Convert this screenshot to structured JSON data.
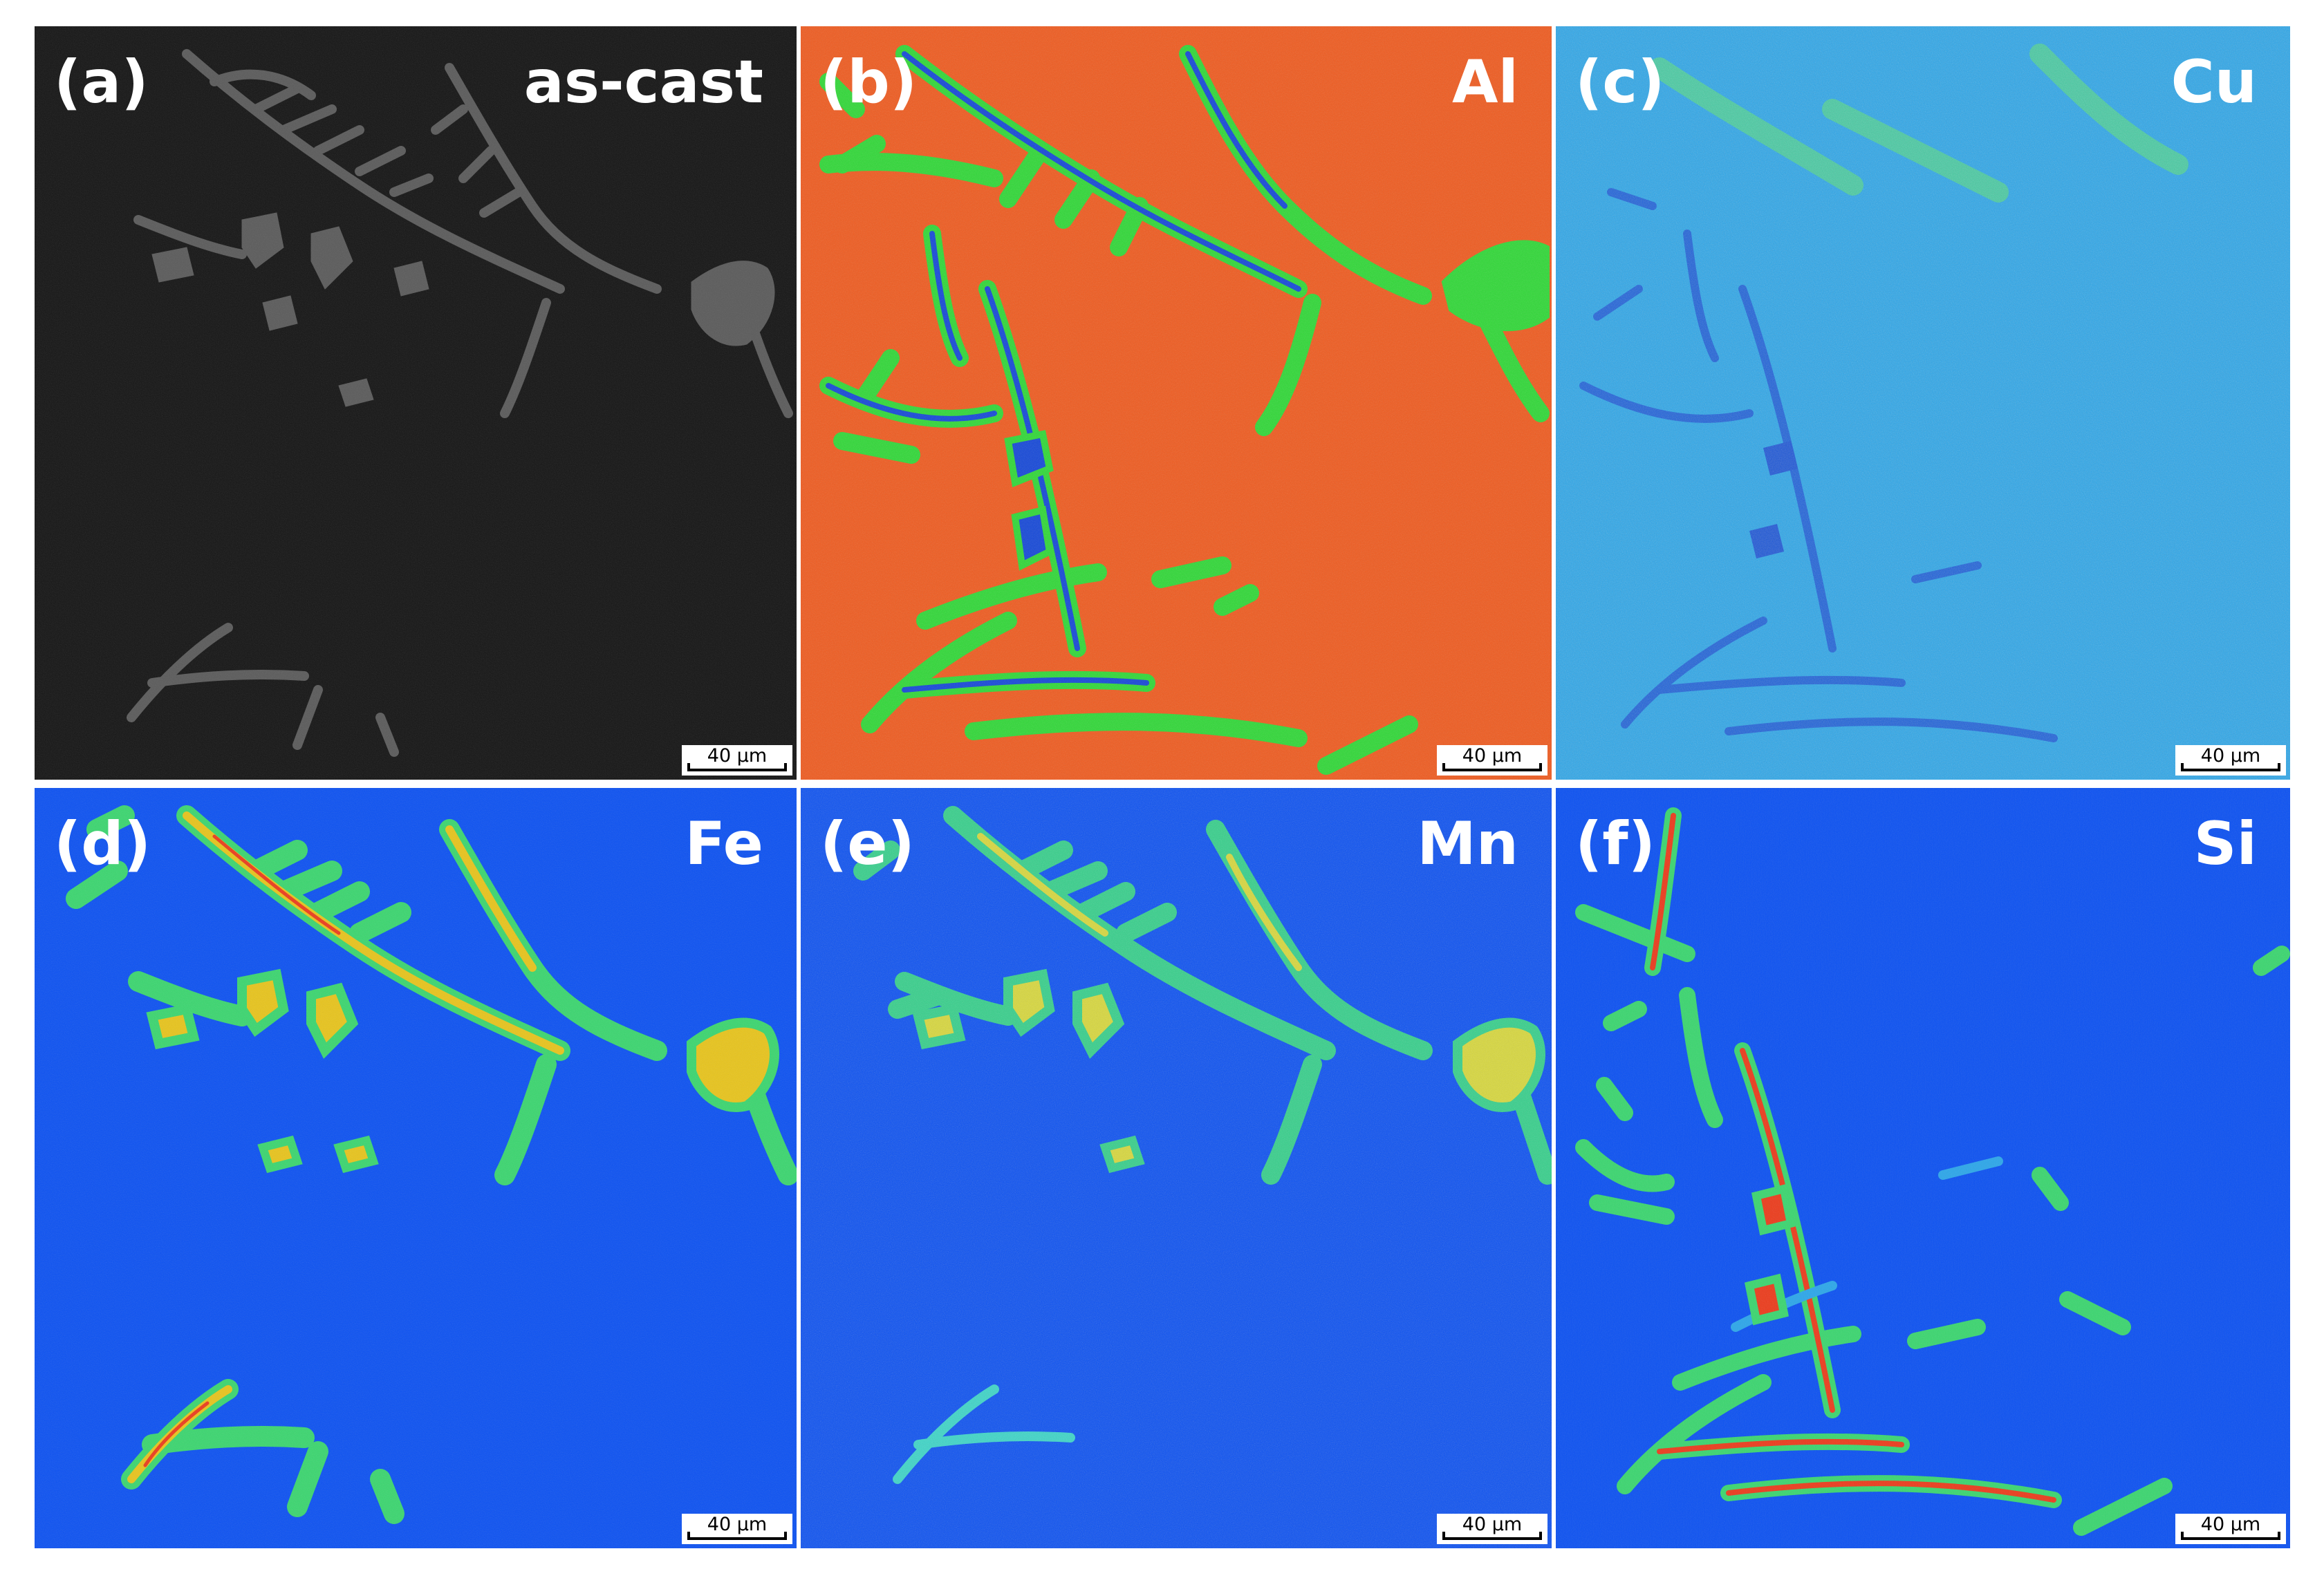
{
  "figure": {
    "panels": [
      {
        "label": "(a)",
        "element": "as-cast",
        "scale_bar": "40 μm",
        "colors": {
          "background": "#141414",
          "phase": "#5a5a5a"
        }
      },
      {
        "label": "(b)",
        "element": "Al",
        "scale_bar": "40 μm",
        "colors": {
          "background": "#ef5a1e",
          "phase": "#2fd836",
          "core": "#1447d8"
        }
      },
      {
        "label": "(c)",
        "element": "Cu",
        "scale_bar": "40 μm",
        "colors": {
          "background": "#2aa6ea",
          "phase": "#4fd88a",
          "core": "#1a55d8"
        }
      },
      {
        "label": "(d)",
        "element": "Fe",
        "scale_bar": "40 μm",
        "colors": {
          "background": "#0a50f2",
          "phase": "#39d66e",
          "core": "#e8c41a"
        }
      },
      {
        "label": "(e)",
        "element": "Mn",
        "scale_bar": "40 μm",
        "colors": {
          "background": "#0a50f2",
          "phase": "#33d08a",
          "core": "#d8d83a"
        }
      },
      {
        "label": "(f)",
        "element": "Si",
        "scale_bar": "40 μm",
        "colors": {
          "background": "#0a50f2",
          "phase": "#39d66e",
          "core": "#ec3a1a"
        }
      }
    ]
  }
}
